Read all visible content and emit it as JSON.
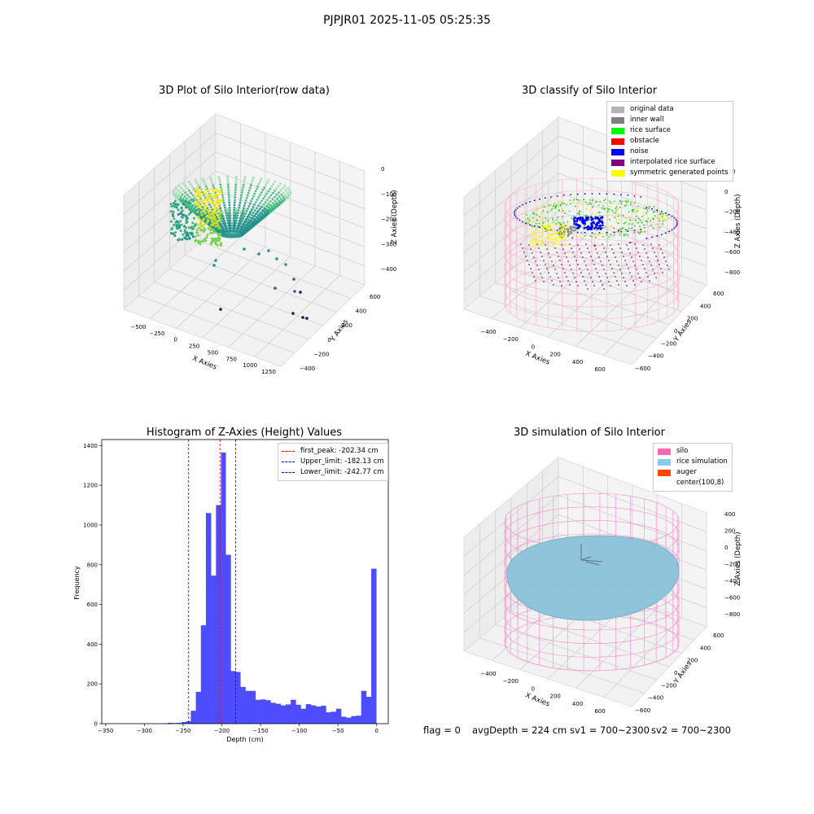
{
  "suptitle": "PJPJR01 2025-11-05 05:25:35",
  "panels": {
    "raw": {
      "title": "3D Plot of Silo Interior(row data)",
      "xlabel": "X Axies",
      "ylabel": "Y Axies",
      "zlabel": "Z Axies (Depth)",
      "xticks": [
        "−500",
        "−250",
        "0",
        "250",
        "500",
        "750",
        "1000",
        "1250"
      ],
      "yticks": [
        "600",
        "400",
        "200",
        "0",
        "−200",
        "−400"
      ],
      "zticks": [
        "0",
        "−100",
        "−200",
        "−300",
        "−400"
      ]
    },
    "classify": {
      "title": "3D classify of Silo Interior",
      "xlabel": "X Axies",
      "ylabel": "Y Axies",
      "zlabel": "Z Axies (Depth)",
      "xticks": [
        "−400",
        "−200",
        "0",
        "200",
        "400",
        "600"
      ],
      "yticks": [
        "600",
        "400",
        "200",
        "0",
        "−200",
        "−400",
        "−600"
      ],
      "zticks": [
        "200",
        "0",
        "−200",
        "−400",
        "−600",
        "−800"
      ],
      "legend": [
        {
          "label": "original data",
          "color": "#b3b3b3"
        },
        {
          "label": "inner wall",
          "color": "#808080"
        },
        {
          "label": "rice surface",
          "color": "#00ff00"
        },
        {
          "label": "obstacle",
          "color": "#ff0000"
        },
        {
          "label": "noise",
          "color": "#0000ff"
        },
        {
          "label": "interpolated rice surface",
          "color": "#800080"
        },
        {
          "label": "symmetric generated points",
          "color": "#ffff00"
        }
      ]
    },
    "simulation": {
      "title": "3D simulation of Silo Interior",
      "xlabel": "X Axies",
      "ylabel": "Y Axies",
      "zlabel": "Z Axies (Depth)",
      "xticks": [
        "−400",
        "−200",
        "0",
        "200",
        "400",
        "600"
      ],
      "yticks": [
        "600",
        "400",
        "200",
        "0",
        "−200",
        "−400",
        "−600"
      ],
      "zticks": [
        "400",
        "200",
        "0",
        "−200",
        "−400",
        "−600",
        "−800"
      ],
      "legend": [
        {
          "label": "silo",
          "color": "#ff69b4"
        },
        {
          "label": "rice simulation",
          "color": "#87ceeb"
        },
        {
          "label": "auger",
          "color": "#ff4500"
        },
        {
          "label": "center(100,8)",
          "color": "#ffffff"
        }
      ]
    }
  },
  "status": {
    "flag": "flag = 0",
    "avg_depth": "avgDepth = 224 cm",
    "sv1": "sv1 = 700~2300",
    "sv2": "sv2 = 700~2300"
  },
  "chart_data": [
    {
      "type": "scatter3d",
      "title": "3D Plot of Silo Interior(row data)",
      "xlabel": "X Axies",
      "ylabel": "Y Axies",
      "zlabel": "Z Axies (Depth)",
      "xlim": [
        -600,
        1300
      ],
      "ylim": [
        -450,
        700
      ],
      "zlim": [
        -450,
        20
      ],
      "colormap": "viridis"
    },
    {
      "type": "scatter3d",
      "title": "3D classify of Silo Interior",
      "xlabel": "X Axies",
      "ylabel": "Y Axies",
      "zlabel": "Z Axies (Depth)",
      "xlim": [
        -500,
        700
      ],
      "ylim": [
        -700,
        700
      ],
      "zlim": [
        -900,
        300
      ],
      "series": [
        {
          "name": "original data",
          "color": "#b3b3b3"
        },
        {
          "name": "inner wall",
          "color": "#808080"
        },
        {
          "name": "rice surface",
          "color": "#00ff00"
        },
        {
          "name": "obstacle",
          "color": "#ff0000"
        },
        {
          "name": "noise",
          "color": "#0000ff"
        },
        {
          "name": "interpolated rice surface",
          "color": "#800080"
        },
        {
          "name": "symmetric generated points",
          "color": "#ffff00"
        }
      ]
    },
    {
      "type": "bar",
      "title": "Histogram of Z-Axies (Height) Values",
      "xlabel": "Depth (cm)",
      "ylabel": "Frequency",
      "xlim": [
        -355,
        15
      ],
      "ylim": [
        0,
        1430
      ],
      "xticks": [
        -350,
        -300,
        -250,
        -200,
        -150,
        -100,
        -50,
        0
      ],
      "yticks": [
        0,
        200,
        400,
        600,
        800,
        1000,
        1200,
        1400
      ],
      "bar_color": "#4d4dff",
      "bins": [
        {
          "x0": -270,
          "x1": -264,
          "v": 4
        },
        {
          "x0": -264,
          "x1": -258,
          "v": 3
        },
        {
          "x0": -258,
          "x1": -252,
          "v": 4
        },
        {
          "x0": -252,
          "x1": -246,
          "v": 8
        },
        {
          "x0": -246,
          "x1": -240,
          "v": 12
        },
        {
          "x0": -240,
          "x1": -233.5,
          "v": 65
        },
        {
          "x0": -233.5,
          "x1": -227,
          "v": 160
        },
        {
          "x0": -227,
          "x1": -220.5,
          "v": 495
        },
        {
          "x0": -220.5,
          "x1": -214,
          "v": 1060
        },
        {
          "x0": -214,
          "x1": -207.5,
          "v": 745
        },
        {
          "x0": -207.5,
          "x1": -201,
          "v": 1100
        },
        {
          "x0": -201,
          "x1": -195,
          "v": 1365
        },
        {
          "x0": -195,
          "x1": -188.5,
          "v": 850
        },
        {
          "x0": -188.5,
          "x1": -182,
          "v": 265
        },
        {
          "x0": -182,
          "x1": -176,
          "v": 260
        },
        {
          "x0": -176,
          "x1": -169.5,
          "v": 185
        },
        {
          "x0": -169.5,
          "x1": -163,
          "v": 165
        },
        {
          "x0": -163,
          "x1": -156.5,
          "v": 165
        },
        {
          "x0": -156.5,
          "x1": -150,
          "v": 120
        },
        {
          "x0": -150,
          "x1": -143.5,
          "v": 122
        },
        {
          "x0": -143.5,
          "x1": -137,
          "v": 118
        },
        {
          "x0": -137,
          "x1": -130.5,
          "v": 105
        },
        {
          "x0": -130.5,
          "x1": -124,
          "v": 100
        },
        {
          "x0": -124,
          "x1": -117.5,
          "v": 92
        },
        {
          "x0": -117.5,
          "x1": -111,
          "v": 97
        },
        {
          "x0": -111,
          "x1": -104.5,
          "v": 120
        },
        {
          "x0": -104.5,
          "x1": -98,
          "v": 95
        },
        {
          "x0": -98,
          "x1": -91.5,
          "v": 75
        },
        {
          "x0": -91.5,
          "x1": -85,
          "v": 98
        },
        {
          "x0": -85,
          "x1": -78.5,
          "v": 92
        },
        {
          "x0": -78.5,
          "x1": -72,
          "v": 86
        },
        {
          "x0": -72,
          "x1": -65.5,
          "v": 90
        },
        {
          "x0": -65.5,
          "x1": -59,
          "v": 57
        },
        {
          "x0": -59,
          "x1": -52.5,
          "v": 60
        },
        {
          "x0": -52.5,
          "x1": -46,
          "v": 75
        },
        {
          "x0": -46,
          "x1": -39.5,
          "v": 35
        },
        {
          "x0": -39.5,
          "x1": -33,
          "v": 30
        },
        {
          "x0": -33,
          "x1": -26.5,
          "v": 38
        },
        {
          "x0": -26.5,
          "x1": -20,
          "v": 40
        },
        {
          "x0": -20,
          "x1": -13.5,
          "v": 165
        },
        {
          "x0": -13.5,
          "x1": -7,
          "v": 135
        },
        {
          "x0": -7,
          "x1": -0.5,
          "v": 780
        }
      ],
      "vlines": [
        {
          "label": "first_peak: -202.34 cm",
          "x": -202.34,
          "color": "#ff0000"
        },
        {
          "label": "Upper_limit: -182.13 cm",
          "x": -182.13,
          "color": "#0000ff"
        },
        {
          "label": "Lower_limit: -242.77 cm",
          "x": -242.77,
          "color": "#0000ff"
        }
      ]
    },
    {
      "type": "surface3d",
      "title": "3D simulation of Silo Interior",
      "xlabel": "X Axies",
      "ylabel": "Y Axies",
      "zlabel": "Z Axies (Depth)",
      "xlim": [
        -500,
        700
      ],
      "ylim": [
        -700,
        700
      ],
      "zlim": [
        -900,
        450
      ],
      "series": [
        {
          "name": "silo",
          "color": "#ff69b4"
        },
        {
          "name": "rice simulation",
          "color": "#87ceeb"
        },
        {
          "name": "auger",
          "color": "#ff4500"
        },
        {
          "name": "center(100,8)",
          "color": "#ffffff"
        }
      ]
    }
  ]
}
